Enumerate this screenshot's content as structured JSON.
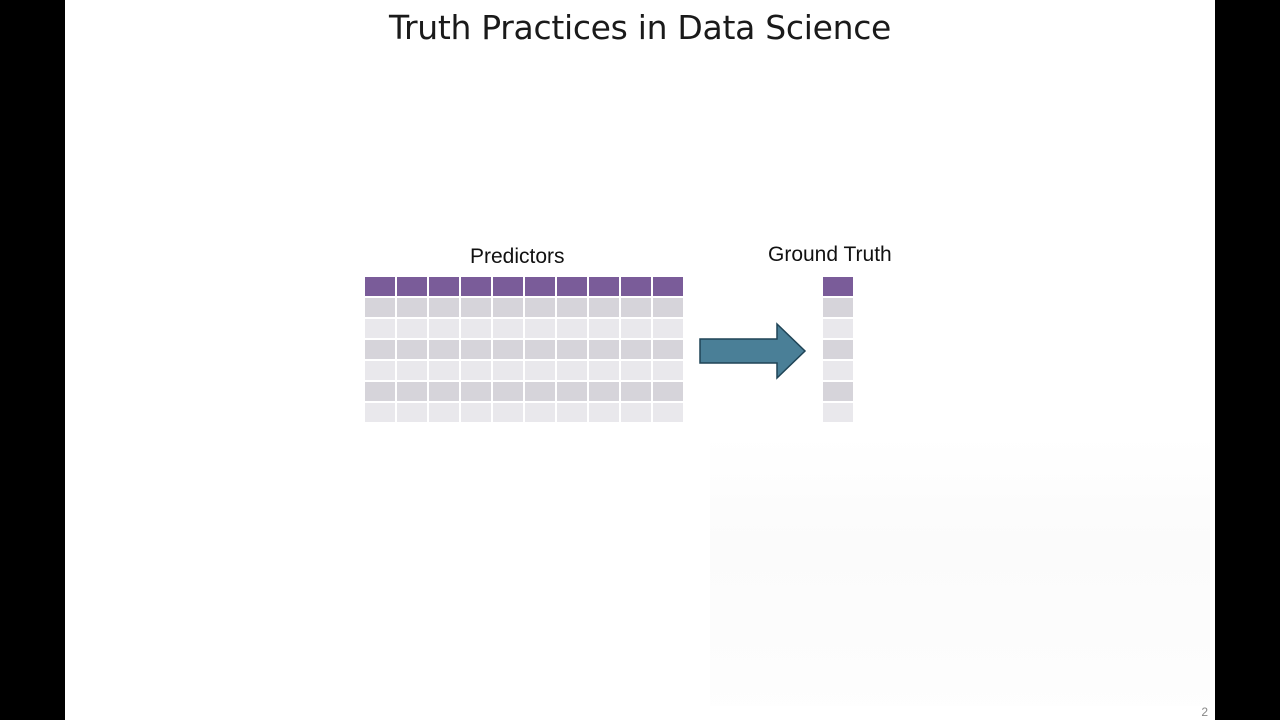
{
  "slide": {
    "title": "Truth Practices in Data Science",
    "page_number": "2"
  },
  "diagram": {
    "predictors_label": "Predictors",
    "ground_truth_label": "Ground Truth",
    "predictors_table": {
      "columns": 10,
      "rows": 7
    },
    "ground_truth_table": {
      "columns": 1,
      "rows": 7
    },
    "colors": {
      "header": "#7a5c99",
      "row_dark": "#d6d4da",
      "row_light": "#e9e8ec",
      "arrow_fill": "#4a7f97",
      "arrow_stroke": "#1f4456"
    }
  }
}
